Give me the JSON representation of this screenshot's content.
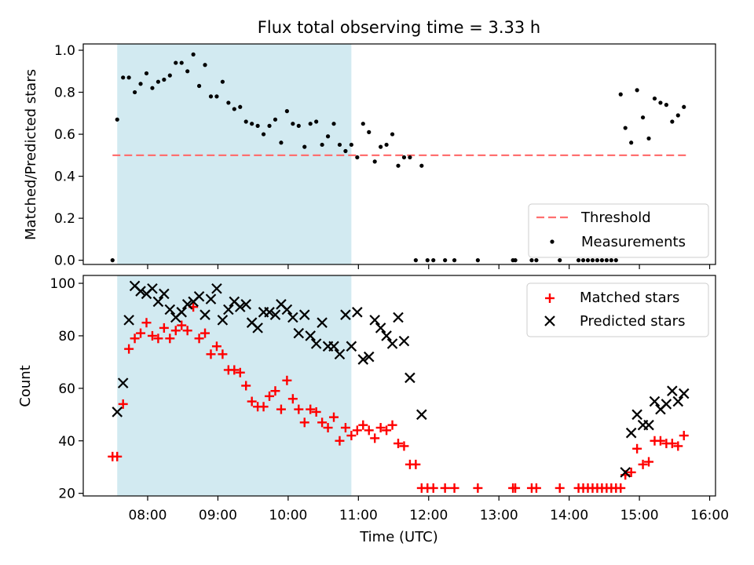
{
  "chart_data": [
    {
      "panel": "top",
      "type": "scatter",
      "title": "Flux total observing time = 3.33 h",
      "xlabel": "",
      "ylabel": "Matched/Predicted stars",
      "ylim": [
        0,
        1.0
      ],
      "yticks": [
        0.0,
        0.2,
        0.4,
        0.6,
        0.8,
        1.0
      ],
      "ytick_labels": [
        "0.0",
        "0.2",
        "0.4",
        "0.6",
        "0.8",
        "1.0"
      ],
      "shaded_interval": {
        "start": "07:34",
        "end": "10:54",
        "color": "#add8e6"
      },
      "threshold": {
        "name": "Threshold",
        "value": 0.5,
        "start": "07:30",
        "end": "15:40",
        "color": "#ff7070"
      },
      "series": [
        {
          "name": "Measurements",
          "color": "#000000",
          "marker": "dot",
          "x": [
            "07:30",
            "07:34",
            "07:39",
            "07:44",
            "07:49",
            "07:54",
            "07:59",
            "08:04",
            "08:09",
            "08:14",
            "08:19",
            "08:24",
            "08:29",
            "08:34",
            "08:39",
            "08:44",
            "08:49",
            "08:54",
            "08:59",
            "09:04",
            "09:09",
            "09:14",
            "09:19",
            "09:24",
            "09:29",
            "09:34",
            "09:39",
            "09:44",
            "09:49",
            "09:54",
            "09:59",
            "10:04",
            "10:09",
            "10:14",
            "10:19",
            "10:24",
            "10:29",
            "10:34",
            "10:39",
            "10:44",
            "10:49",
            "10:54",
            "10:59",
            "11:04",
            "11:09",
            "11:14",
            "11:19",
            "11:24",
            "11:29",
            "11:34",
            "11:39",
            "11:44",
            "11:49",
            "11:54",
            "11:59",
            "12:04",
            "12:14",
            "12:22",
            "12:42",
            "13:12",
            "13:14",
            "13:28",
            "13:32",
            "13:52",
            "14:08",
            "14:12",
            "14:16",
            "14:20",
            "14:24",
            "14:28",
            "14:32",
            "14:36",
            "14:40",
            "14:44",
            "14:48",
            "14:53",
            "14:58",
            "15:03",
            "15:08",
            "15:13",
            "15:18",
            "15:23",
            "15:28",
            "15:33",
            "15:38"
          ],
          "y": [
            0.0,
            0.67,
            0.87,
            0.87,
            0.8,
            0.84,
            0.89,
            0.82,
            0.85,
            0.86,
            0.88,
            0.94,
            0.94,
            0.9,
            0.98,
            0.83,
            0.93,
            0.78,
            0.78,
            0.85,
            0.75,
            0.72,
            0.73,
            0.66,
            0.65,
            0.64,
            0.6,
            0.64,
            0.67,
            0.56,
            0.71,
            0.65,
            0.64,
            0.54,
            0.65,
            0.66,
            0.55,
            0.59,
            0.65,
            0.55,
            0.52,
            0.55,
            0.49,
            0.65,
            0.61,
            0.47,
            0.54,
            0.55,
            0.6,
            0.45,
            0.49,
            0.49,
            0.0,
            0.45,
            0.0,
            0.0,
            0.0,
            0.0,
            0.0,
            0.0,
            0.0,
            0.0,
            0.0,
            0.0,
            0.0,
            0.0,
            0.0,
            0.0,
            0.0,
            0.0,
            0.0,
            0.0,
            0.0,
            0.79,
            0.63,
            0.56,
            0.81,
            0.68,
            0.58,
            0.77,
            0.75,
            0.74,
            0.66,
            0.69,
            0.73
          ]
        }
      ],
      "legend": {
        "position": "lower right",
        "entries": [
          "Threshold",
          "Measurements"
        ]
      }
    },
    {
      "panel": "bottom",
      "type": "scatter",
      "xlabel": "Time (UTC)",
      "ylabel": "Count",
      "ylim": [
        19,
        103
      ],
      "yticks": [
        20,
        40,
        60,
        80,
        100
      ],
      "ytick_labels": [
        "20",
        "40",
        "60",
        "80",
        "100"
      ],
      "xlim": [
        "07:05",
        "16:05"
      ],
      "xticks": [
        "08:00",
        "09:00",
        "10:00",
        "11:00",
        "12:00",
        "13:00",
        "14:00",
        "15:00",
        "16:00"
      ],
      "shaded_interval": {
        "start": "07:34",
        "end": "10:54",
        "color": "#add8e6"
      },
      "series": [
        {
          "name": "Matched stars",
          "color": "#ff0000",
          "marker": "plus",
          "x": [
            "07:30",
            "07:34",
            "07:39",
            "07:44",
            "07:49",
            "07:54",
            "07:59",
            "08:04",
            "08:09",
            "08:14",
            "08:19",
            "08:24",
            "08:29",
            "08:34",
            "08:39",
            "08:44",
            "08:49",
            "08:54",
            "08:59",
            "09:04",
            "09:09",
            "09:14",
            "09:19",
            "09:24",
            "09:29",
            "09:34",
            "09:39",
            "09:44",
            "09:49",
            "09:54",
            "09:59",
            "10:04",
            "10:09",
            "10:14",
            "10:19",
            "10:24",
            "10:29",
            "10:34",
            "10:39",
            "10:44",
            "10:49",
            "10:54",
            "10:59",
            "11:04",
            "11:09",
            "11:14",
            "11:19",
            "11:24",
            "11:29",
            "11:34",
            "11:39",
            "11:44",
            "11:49",
            "11:54",
            "11:59",
            "12:04",
            "12:14",
            "12:22",
            "12:42",
            "13:12",
            "13:14",
            "13:28",
            "13:32",
            "13:52",
            "14:08",
            "14:12",
            "14:16",
            "14:20",
            "14:24",
            "14:28",
            "14:32",
            "14:36",
            "14:40",
            "14:44",
            "14:48",
            "14:53",
            "14:58",
            "15:03",
            "15:08",
            "15:13",
            "15:18",
            "15:23",
            "15:28",
            "15:33",
            "15:38"
          ],
          "y": [
            34,
            34,
            54,
            75,
            79,
            81,
            85,
            80,
            79,
            83,
            79,
            82,
            84,
            82,
            91,
            79,
            81,
            73,
            76,
            73,
            67,
            67,
            66,
            61,
            55,
            53,
            53,
            57,
            59,
            52,
            63,
            56,
            52,
            47,
            52,
            51,
            47,
            45,
            49,
            40,
            45,
            42,
            44,
            46,
            44,
            41,
            45,
            44,
            46,
            39,
            38,
            31,
            31,
            22,
            22,
            22,
            22,
            22,
            22,
            22,
            22,
            22,
            22,
            22,
            22,
            22,
            22,
            22,
            22,
            22,
            22,
            22,
            22,
            22,
            27,
            28,
            37,
            31,
            32,
            40,
            40,
            39,
            39,
            38,
            42
          ]
        },
        {
          "name": "Predicted stars",
          "color": "#000000",
          "marker": "x",
          "x": [
            "07:34",
            "07:39",
            "07:44",
            "07:49",
            "07:54",
            "07:59",
            "08:04",
            "08:09",
            "08:14",
            "08:19",
            "08:24",
            "08:29",
            "08:34",
            "08:39",
            "08:44",
            "08:49",
            "08:54",
            "08:59",
            "09:04",
            "09:09",
            "09:14",
            "09:19",
            "09:24",
            "09:29",
            "09:34",
            "09:39",
            "09:44",
            "09:49",
            "09:54",
            "09:59",
            "10:04",
            "10:09",
            "10:14",
            "10:19",
            "10:24",
            "10:29",
            "10:34",
            "10:39",
            "10:44",
            "10:49",
            "10:54",
            "10:59",
            "11:04",
            "11:09",
            "11:14",
            "11:19",
            "11:24",
            "11:29",
            "11:34",
            "11:39",
            "11:44",
            "11:54",
            "14:48",
            "14:53",
            "14:58",
            "15:03",
            "15:08",
            "15:13",
            "15:18",
            "15:23",
            "15:28",
            "15:33",
            "15:38"
          ],
          "y": [
            51,
            62,
            86,
            99,
            97,
            96,
            98,
            93,
            96,
            90,
            87,
            89,
            92,
            93,
            95,
            88,
            94,
            98,
            86,
            90,
            93,
            91,
            92,
            85,
            83,
            89,
            89,
            88,
            92,
            90,
            87,
            81,
            88,
            80,
            77,
            85,
            76,
            76,
            73,
            88,
            76,
            89,
            71,
            72,
            86,
            83,
            80,
            77,
            87,
            78,
            64,
            50,
            28,
            43,
            50,
            46,
            46,
            55,
            52,
            54,
            59,
            55,
            58
          ]
        }
      ],
      "legend": {
        "position": "upper right",
        "entries": [
          "Matched stars",
          "Predicted stars"
        ]
      }
    }
  ]
}
